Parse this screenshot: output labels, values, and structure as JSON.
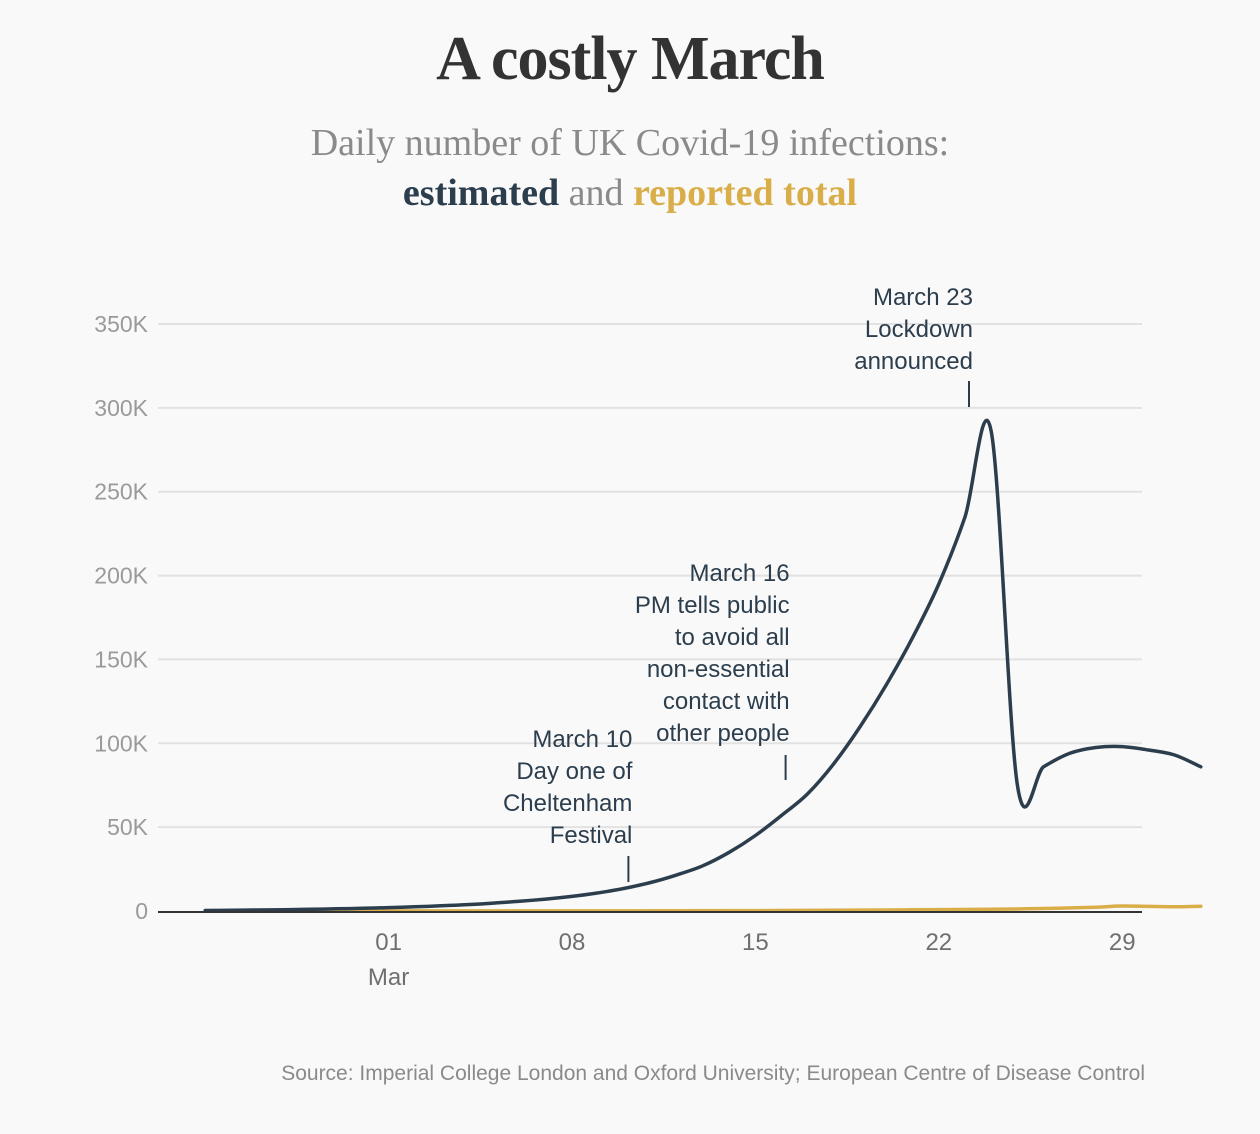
{
  "title": "A costly March",
  "subtitle": {
    "line1": "Daily number of UK Covid-19 infections:",
    "estimated": "estimated",
    "and": "and",
    "reported": "reported total"
  },
  "source": "Source: Imperial College London and Oxford University; European Centre of Disease Control",
  "colors": {
    "estimated": "#2c3e4d",
    "reported": "#d9ad48",
    "grid": "#e2e2e2",
    "axis": "#333333"
  },
  "chart_data": {
    "type": "line",
    "x_unit": "date",
    "xlim": [
      "2020-02-22",
      "2020-03-31"
    ],
    "ylim": [
      0,
      350000
    ],
    "y_ticks": [
      {
        "value": 0,
        "label": "0"
      },
      {
        "value": 50000,
        "label": "50K"
      },
      {
        "value": 100000,
        "label": "100K"
      },
      {
        "value": 150000,
        "label": "150K"
      },
      {
        "value": 200000,
        "label": "200K"
      },
      {
        "value": 250000,
        "label": "250K"
      },
      {
        "value": 300000,
        "label": "300K"
      },
      {
        "value": 350000,
        "label": "350K"
      }
    ],
    "x_ticks": [
      {
        "date": "2020-03-01",
        "label": "01",
        "sublabel": "Mar"
      },
      {
        "date": "2020-03-08",
        "label": "08",
        "sublabel": ""
      },
      {
        "date": "2020-03-15",
        "label": "15",
        "sublabel": ""
      },
      {
        "date": "2020-03-22",
        "label": "22",
        "sublabel": ""
      },
      {
        "date": "2020-03-29",
        "label": "29",
        "sublabel": ""
      }
    ],
    "grid": true,
    "series": [
      {
        "name": "estimated",
        "color": "#2c3e4d",
        "points": [
          [
            "2020-02-23",
            300
          ],
          [
            "2020-02-24",
            450
          ],
          [
            "2020-02-25",
            600
          ],
          [
            "2020-02-26",
            800
          ],
          [
            "2020-02-27",
            1000
          ],
          [
            "2020-02-28",
            1300
          ],
          [
            "2020-02-29",
            1600
          ],
          [
            "2020-03-01",
            2000
          ],
          [
            "2020-03-02",
            2500
          ],
          [
            "2020-03-03",
            3100
          ],
          [
            "2020-03-04",
            3800
          ],
          [
            "2020-03-05",
            4700
          ],
          [
            "2020-03-06",
            5800
          ],
          [
            "2020-03-07",
            7100
          ],
          [
            "2020-03-08",
            8700
          ],
          [
            "2020-03-09",
            10800
          ],
          [
            "2020-03-10",
            13500
          ],
          [
            "2020-03-11",
            17000
          ],
          [
            "2020-03-12",
            21500
          ],
          [
            "2020-03-13",
            27000
          ],
          [
            "2020-03-14",
            35000
          ],
          [
            "2020-03-15",
            45000
          ],
          [
            "2020-03-16",
            57000
          ],
          [
            "2020-03-17",
            70000
          ],
          [
            "2020-03-18",
            88000
          ],
          [
            "2020-03-19",
            110000
          ],
          [
            "2020-03-20",
            135000
          ],
          [
            "2020-03-21",
            163000
          ],
          [
            "2020-03-22",
            195000
          ],
          [
            "2020-03-23",
            235000
          ],
          [
            "2020-03-24",
            286000
          ],
          [
            "2020-03-25",
            75000
          ],
          [
            "2020-03-26",
            86000
          ],
          [
            "2020-03-27",
            94000
          ],
          [
            "2020-03-28",
            97500
          ],
          [
            "2020-03-29",
            98000
          ],
          [
            "2020-03-30",
            96000
          ],
          [
            "2020-03-31",
            93000
          ],
          [
            "2020-04-01",
            86000
          ]
        ]
      },
      {
        "name": "reported total",
        "color": "#d9ad48",
        "points": [
          [
            "2020-02-23",
            0
          ],
          [
            "2020-03-01",
            30
          ],
          [
            "2020-03-08",
            70
          ],
          [
            "2020-03-12",
            130
          ],
          [
            "2020-03-15",
            230
          ],
          [
            "2020-03-18",
            400
          ],
          [
            "2020-03-21",
            700
          ],
          [
            "2020-03-24",
            1000
          ],
          [
            "2020-03-26",
            1500
          ],
          [
            "2020-03-28",
            2200
          ],
          [
            "2020-03-29",
            3000
          ],
          [
            "2020-03-31",
            2500
          ],
          [
            "2020-04-01",
            2800
          ]
        ]
      }
    ],
    "annotations": [
      {
        "date": "2020-03-10",
        "lines": [
          "March 10",
          "Day one of",
          "Cheltenham",
          "Festival"
        ]
      },
      {
        "date": "2020-03-16",
        "lines": [
          "March 16",
          "PM tells public",
          "to avoid all",
          "non-essential",
          "contact with",
          "other people"
        ]
      },
      {
        "date": "2020-03-23",
        "lines": [
          "March 23",
          "Lockdown",
          "announced"
        ]
      }
    ]
  }
}
